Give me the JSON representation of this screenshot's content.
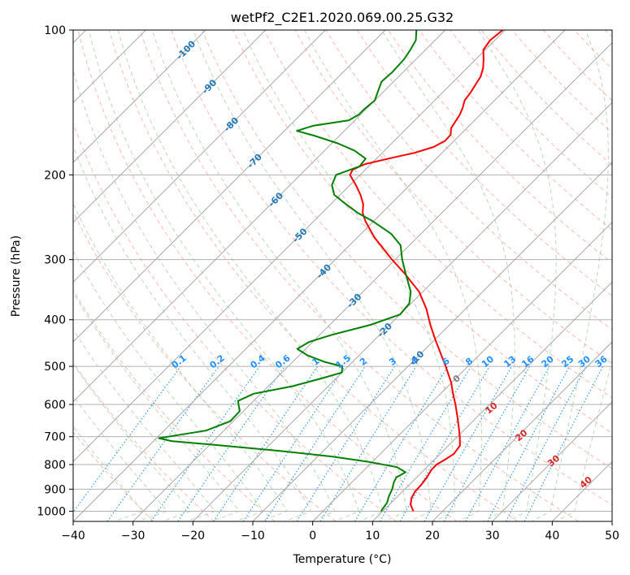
{
  "chart_data": {
    "type": "line",
    "title": "wetPf2_C2E1.2020.069.00.25.G32",
    "xlabel": "Temperature (°C)",
    "ylabel": "Pressure (hPa)",
    "xlim": [
      -40,
      50
    ],
    "ylim": [
      1050,
      100
    ],
    "y_scale": "log",
    "skew": true,
    "grid": true,
    "x_ticks": [
      "−40",
      "−30",
      "−20",
      "−10",
      "0",
      "10",
      "20",
      "30",
      "40",
      "50"
    ],
    "y_ticks": [
      "100",
      "200",
      "300",
      "400",
      "500",
      "600",
      "700",
      "800",
      "900",
      "1000"
    ],
    "series": [
      {
        "color": "#ff0000",
        "points": [
          [
            1000,
            15.1
          ],
          [
            970,
            13.6
          ],
          [
            940,
            12.6
          ],
          [
            910,
            12.1
          ],
          [
            880,
            12.0
          ],
          [
            850,
            11.7
          ],
          [
            820,
            11.2
          ],
          [
            800,
            11.2
          ],
          [
            780,
            11.8
          ],
          [
            760,
            12.3
          ],
          [
            730,
            11.9
          ],
          [
            700,
            10.4
          ],
          [
            670,
            8.7
          ],
          [
            640,
            6.9
          ],
          [
            600,
            4.3
          ],
          [
            570,
            2.1
          ],
          [
            540,
            -0.1
          ],
          [
            500,
            -3.7
          ],
          [
            470,
            -6.7
          ],
          [
            440,
            -9.9
          ],
          [
            410,
            -13.2
          ],
          [
            380,
            -16.5
          ],
          [
            350,
            -20.6
          ],
          [
            320,
            -26.2
          ],
          [
            300,
            -30.5
          ],
          [
            270,
            -37.1
          ],
          [
            250,
            -41.3
          ],
          [
            240,
            -43.2
          ],
          [
            230,
            -44.6
          ],
          [
            220,
            -46.6
          ],
          [
            210,
            -49.0
          ],
          [
            200,
            -51.7
          ],
          [
            195,
            -52.1
          ],
          [
            190,
            -51.0
          ],
          [
            185,
            -48.0
          ],
          [
            180,
            -44.6
          ],
          [
            175,
            -42.4
          ],
          [
            170,
            -41.5
          ],
          [
            165,
            -41.6
          ],
          [
            160,
            -42.6
          ],
          [
            155,
            -43.0
          ],
          [
            150,
            -43.4
          ],
          [
            145,
            -44.1
          ],
          [
            140,
            -45.0
          ],
          [
            135,
            -45.3
          ],
          [
            130,
            -45.8
          ],
          [
            125,
            -46.3
          ],
          [
            120,
            -47.3
          ],
          [
            115,
            -48.7
          ],
          [
            110,
            -50.3
          ],
          [
            105,
            -50.8
          ],
          [
            100,
            -50.4
          ]
        ]
      },
      {
        "color": "#008000",
        "points": [
          [
            1000,
            9.7
          ],
          [
            960,
            9.3
          ],
          [
            930,
            8.5
          ],
          [
            900,
            7.9
          ],
          [
            870,
            7.0
          ],
          [
            850,
            6.6
          ],
          [
            830,
            7.3
          ],
          [
            810,
            5.0
          ],
          [
            790,
            -0.5
          ],
          [
            770,
            -7.5
          ],
          [
            750,
            -17.0
          ],
          [
            730,
            -28.0
          ],
          [
            715,
            -37.0
          ],
          [
            705,
            -39.6
          ],
          [
            695,
            -37.0
          ],
          [
            680,
            -33.0
          ],
          [
            650,
            -30.5
          ],
          [
            620,
            -30.6
          ],
          [
            590,
            -32.6
          ],
          [
            570,
            -31.2
          ],
          [
            550,
            -26.0
          ],
          [
            530,
            -22.5
          ],
          [
            515,
            -20.0
          ],
          [
            500,
            -21.0
          ],
          [
            490,
            -24.5
          ],
          [
            475,
            -28.5
          ],
          [
            460,
            -31.4
          ],
          [
            445,
            -30.6
          ],
          [
            430,
            -28.0
          ],
          [
            410,
            -23.2
          ],
          [
            390,
            -20.0
          ],
          [
            370,
            -20.3
          ],
          [
            350,
            -22.0
          ],
          [
            320,
            -26.0
          ],
          [
            300,
            -28.8
          ],
          [
            280,
            -31.5
          ],
          [
            265,
            -35.0
          ],
          [
            250,
            -40.0
          ],
          [
            240,
            -44.0
          ],
          [
            230,
            -47.5
          ],
          [
            220,
            -51.0
          ],
          [
            210,
            -53.0
          ],
          [
            200,
            -54.0
          ],
          [
            192,
            -51.5
          ],
          [
            185,
            -51.8
          ],
          [
            178,
            -55.0
          ],
          [
            172,
            -59.0
          ],
          [
            166,
            -64.0
          ],
          [
            162,
            -67.9
          ],
          [
            158,
            -66.0
          ],
          [
            154,
            -61.0
          ],
          [
            150,
            -60.3
          ],
          [
            146,
            -60.3
          ],
          [
            140,
            -60.0
          ],
          [
            134,
            -61.0
          ],
          [
            128,
            -62.0
          ],
          [
            122,
            -61.8
          ],
          [
            115,
            -62.0
          ],
          [
            110,
            -62.5
          ],
          [
            105,
            -63.2
          ],
          [
            100,
            -64.8
          ]
        ]
      }
    ],
    "isotherm_labels": [
      {
        "text": "-100",
        "p": 110
      },
      {
        "text": "-90",
        "p": 131
      },
      {
        "text": "-80",
        "p": 157
      },
      {
        "text": "-70",
        "p": 187
      },
      {
        "text": "-60",
        "p": 225
      },
      {
        "text": "-50",
        "p": 267
      },
      {
        "text": "-40",
        "p": 317
      },
      {
        "text": "-30",
        "p": 365
      },
      {
        "text": "-20",
        "p": 420
      },
      {
        "text": "-10",
        "p": 480
      }
    ],
    "mixing_ratio_labels": [
      "0.1",
      "0.2",
      "0.4",
      "0.6",
      "1",
      "1.5",
      "2",
      "3",
      "4",
      "6",
      "8",
      "10",
      "13",
      "16",
      "20",
      "25",
      "30",
      "36"
    ],
    "moist_adiabat_labels": [
      {
        "text": "0",
        "t": 24.0,
        "p": 530
      },
      {
        "text": "10",
        "t": 29.8,
        "p": 610
      },
      {
        "text": "20",
        "t": 34.8,
        "p": 695
      },
      {
        "text": "30",
        "t": 40.2,
        "p": 785
      },
      {
        "text": "40",
        "t": 45.6,
        "p": 870
      }
    ],
    "colors": {
      "temperature": "#ff0000",
      "dewpoint": "#008000",
      "dry_adiabat": "#fa8072",
      "moist_adiabat": "#8fbc8f",
      "mixing_ratio": "#1e90ff",
      "isotherm": "#808080",
      "isotherm_label": "#1f77b4"
    }
  }
}
